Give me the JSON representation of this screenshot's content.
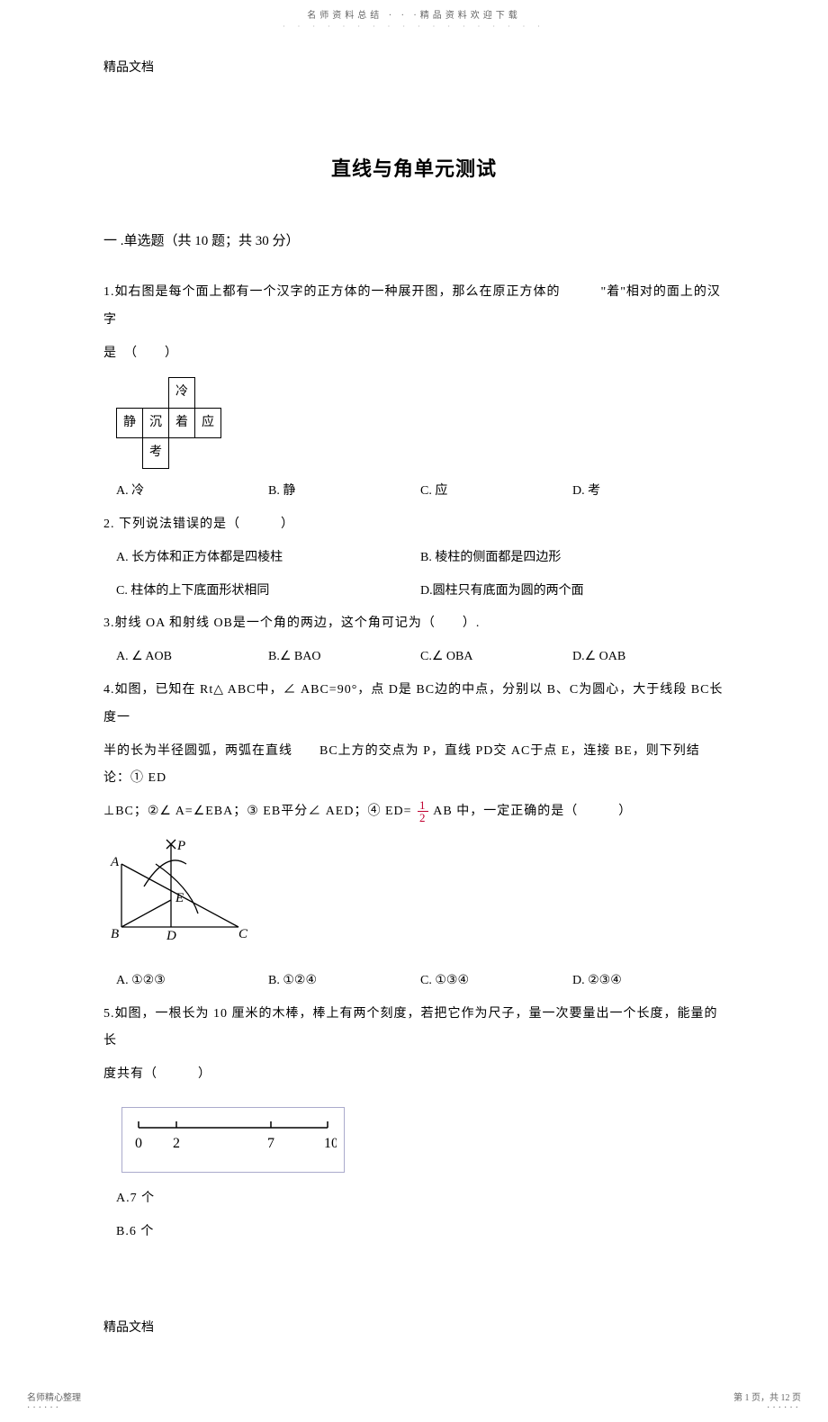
{
  "header": {
    "top": "名师资料总结 · · ·精品资料欢迎下载",
    "dots": "· · · · · · · · · · · · · · · · · ·",
    "label": "精品文档",
    "title": "直线与角单元测试"
  },
  "section1": {
    "head": "一 .单选题（共  10 题；共  30 分）"
  },
  "q1": {
    "text": "1.如右图是每个面上都有一个汉字的正方体的一种展开图，那么在原正方体的　　　\"着\"相对的面上的汉字",
    "text2": "是　（　　）",
    "net": {
      "r1c3": "冷",
      "r2c1": "静",
      "r2c2": "沉",
      "r2c3": "着",
      "r2c4": "应",
      "r3c2": "考"
    },
    "opts": {
      "a": "A. 冷",
      "b": "B. 静",
      "c": "C. 应",
      "d": "D. 考"
    }
  },
  "q2": {
    "text": "2. 下列说法错误的是（　　　）",
    "opts": {
      "a": "A. 长方体和正方体都是四棱柱",
      "b": "B. 棱柱的侧面都是四边形",
      "c": "C. 柱体的上下底面形状相同",
      "d": "D.圆柱只有底面为圆的两个面"
    }
  },
  "q3": {
    "text": "3.射线  OA 和射线   OB是一个角的两边，这个角可记为（　　）.",
    "opts": {
      "a": "A. ∠ AOB",
      "b": "B.∠ BAO",
      "c": "C.∠ OBA",
      "d": "D.∠ OAB"
    }
  },
  "q4": {
    "line1": "4.如图，已知在   Rt△ ABC中，∠ ABC=90°，点 D是 BC边的中点，分别以   B、C为圆心，大于线段   BC长度一",
    "line2": "半的长为半径圆弧，两弧在直线　　BC上方的交点为   P，直线  PD交 AC于点 E，连接  BE，则下列结论：①   ED",
    "line3_pre": "⊥BC；②∠ A=∠EBA；③ EB平分∠ AED；④ ED= ",
    "line3_post": " AB 中，一定正确的是（　　　）",
    "frac": {
      "num": "1",
      "den": "2"
    },
    "geom": {
      "labels": {
        "A": "A",
        "B": "B",
        "C": "C",
        "D": "D",
        "E": "E",
        "P": "P"
      },
      "stroke": "#000000",
      "font_family": "Times New Roman",
      "font_style": "italic",
      "font_size": 15
    },
    "opts": {
      "a": "A. ①②③",
      "b": "B. ①②④",
      "c": "C. ①③④",
      "d": "D. ②③④"
    }
  },
  "q5": {
    "line1": "5.如图，一根长为   10 厘米的木棒，棒上有两个刻度，若把它作为尺子，量一次要量出一个长度，能量的长",
    "line2": "度共有（　　　）",
    "ruler": {
      "ticks": [
        0,
        2,
        7,
        10
      ],
      "length": 10,
      "font_family": "Times New Roman",
      "font_size": 16,
      "stroke": "#000000"
    },
    "optA": "A.7 个",
    "optB": "B.6 个"
  },
  "footer": {
    "label": "精品文档",
    "left": "名师精心整理",
    "right": "第 1 页，共 12 页"
  }
}
